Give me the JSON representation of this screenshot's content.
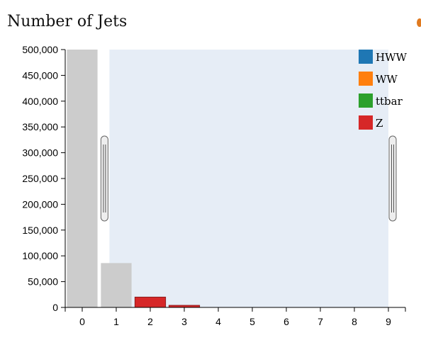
{
  "chart_title": "Number of Jets",
  "chart_data": {
    "type": "bar",
    "title": "Number of Jets",
    "categories": [
      "0",
      "1",
      "2",
      "3",
      "4",
      "5",
      "6",
      "7",
      "8",
      "9"
    ],
    "ylim": [
      0,
      500000
    ],
    "yticks": [
      0,
      50000,
      100000,
      150000,
      200000,
      250000,
      300000,
      350000,
      400000,
      450000,
      500000
    ],
    "ytick_labels": [
      "0",
      "50,000",
      "100,000",
      "150,000",
      "200,000",
      "250,000",
      "300,000",
      "350,000",
      "400,000",
      "450,000",
      "500,000"
    ],
    "series_all": {
      "values": [
        500000,
        86000,
        0,
        0,
        0,
        0,
        0,
        0,
        0,
        0
      ],
      "color": "#cccccc"
    },
    "series": [
      {
        "name": "HWW",
        "color": "#1f77b4",
        "values": [
          0,
          0,
          0,
          0,
          0,
          0,
          0,
          0,
          0,
          0
        ]
      },
      {
        "name": "WW",
        "color": "#ff7f0e",
        "values": [
          0,
          0,
          0,
          0,
          0,
          0,
          0,
          0,
          0,
          0
        ]
      },
      {
        "name": "ttbar",
        "color": "#2ca02c",
        "values": [
          0,
          0,
          0,
          0,
          0,
          0,
          0,
          0,
          0,
          0
        ]
      },
      {
        "name": "Z",
        "color": "#d62728",
        "values": [
          0,
          0,
          20000,
          4000,
          0,
          0,
          0,
          0,
          0,
          0
        ]
      }
    ],
    "brush_range": [
      1.3,
      9.5
    ],
    "legend_position": "top-right",
    "grid": false
  }
}
